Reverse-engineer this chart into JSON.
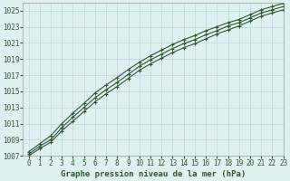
{
  "title": "Graphe pression niveau de la mer (hPa)",
  "xlabel": "Graphe pression niveau de la mer (hPa)",
  "background_color": "#dff0f0",
  "grid_color": "#b8d8d8",
  "line_color": "#2d5a2d",
  "x": [
    0,
    1,
    2,
    3,
    4,
    5,
    6,
    7,
    8,
    9,
    10,
    11,
    12,
    13,
    14,
    15,
    16,
    17,
    18,
    19,
    20,
    21,
    22,
    23
  ],
  "y_upper": [
    1007.5,
    1008.5,
    1009.5,
    1011.0,
    1012.3,
    1013.5,
    1014.8,
    1015.8,
    1016.7,
    1017.7,
    1018.6,
    1019.4,
    1020.1,
    1020.8,
    1021.4,
    1021.9,
    1022.5,
    1023.0,
    1023.5,
    1023.9,
    1024.5,
    1025.1,
    1025.5,
    1025.9
  ],
  "y_main": [
    1007.2,
    1008.2,
    1009.0,
    1010.5,
    1011.8,
    1013.0,
    1014.2,
    1015.2,
    1016.1,
    1017.1,
    1018.1,
    1018.9,
    1019.6,
    1020.3,
    1020.9,
    1021.4,
    1022.0,
    1022.5,
    1023.1,
    1023.5,
    1024.1,
    1024.7,
    1025.1,
    1025.5
  ],
  "y_lower": [
    1007.0,
    1007.9,
    1008.7,
    1010.1,
    1011.3,
    1012.5,
    1013.7,
    1014.7,
    1015.6,
    1016.6,
    1017.6,
    1018.4,
    1019.1,
    1019.8,
    1020.4,
    1020.9,
    1021.5,
    1022.1,
    1022.6,
    1023.1,
    1023.7,
    1024.3,
    1024.7,
    1025.1
  ],
  "ylim": [
    1007,
    1026
  ],
  "xlim": [
    -0.5,
    23
  ],
  "yticks": [
    1007,
    1009,
    1011,
    1013,
    1015,
    1017,
    1019,
    1021,
    1023,
    1025
  ],
  "xticks": [
    0,
    1,
    2,
    3,
    4,
    5,
    6,
    7,
    8,
    9,
    10,
    11,
    12,
    13,
    14,
    15,
    16,
    17,
    18,
    19,
    20,
    21,
    22,
    23
  ],
  "marker": "+",
  "marker_size": 3.5,
  "line_width": 0.8,
  "tick_fontsize": 5.5,
  "xlabel_fontsize": 6.5
}
